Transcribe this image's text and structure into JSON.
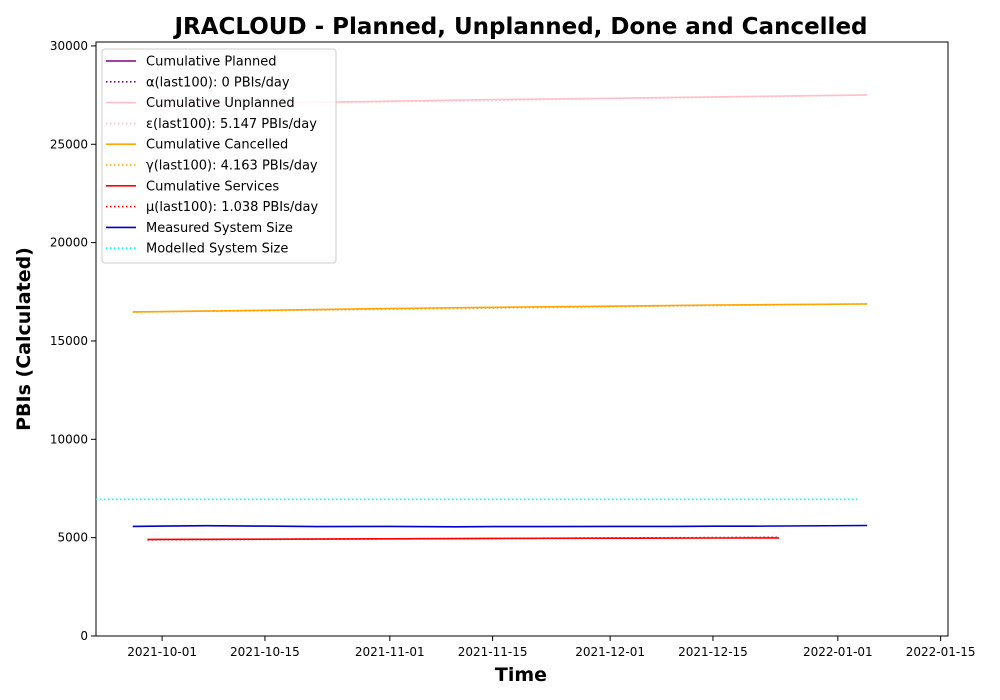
{
  "chart_data": {
    "type": "line",
    "title": "JRACLOUD - Planned, Unplanned, Done  and Cancelled",
    "xlabel": "Time",
    "ylabel": "PBIs (Calculated)",
    "x_axis_type": "date",
    "xlim": [
      "2021-09-22",
      "2022-01-16"
    ],
    "ylim": [
      0,
      30200
    ],
    "x_ticks": [
      "2021-10-01",
      "2021-10-15",
      "2021-11-01",
      "2021-11-15",
      "2021-12-01",
      "2021-12-15",
      "2022-01-01",
      "2022-01-15"
    ],
    "y_ticks": [
      0,
      5000,
      10000,
      15000,
      20000,
      25000,
      30000
    ],
    "grid": false,
    "legend_position": "top-left",
    "series": [
      {
        "name": "Cumulative Planned",
        "color": "#800080",
        "style": "solid",
        "x": [],
        "y": []
      },
      {
        "name": "α(last100): 0 PBIs/day",
        "color": "#800080",
        "style": "dotted",
        "x": [],
        "y": []
      },
      {
        "name": "Cumulative Unplanned",
        "color": "#ffc0cb",
        "style": "solid",
        "x": [
          "2021-09-29",
          "2021-10-15",
          "2021-11-01",
          "2021-11-15",
          "2021-12-01",
          "2021-12-15",
          "2022-01-05"
        ],
        "y": [
          26960,
          27090,
          27190,
          27270,
          27340,
          27410,
          27510
        ]
      },
      {
        "name": "ε(last100): 5.147 PBIs/day",
        "color": "#ffc0cb",
        "style": "dotted",
        "x": [
          "2021-09-29",
          "2022-01-05"
        ],
        "y": [
          26990,
          27500
        ]
      },
      {
        "name": "Cumulative Cancelled",
        "color": "#ffa500",
        "style": "solid",
        "x": [
          "2021-09-27",
          "2021-10-15",
          "2021-11-01",
          "2021-11-15",
          "2021-12-01",
          "2021-12-15",
          "2022-01-05"
        ],
        "y": [
          16480,
          16560,
          16650,
          16710,
          16770,
          16830,
          16880
        ]
      },
      {
        "name": "γ(last100): 4.163 PBIs/day",
        "color": "#ffa500",
        "style": "dotted",
        "x": [
          "2021-09-27",
          "2022-01-05"
        ],
        "y": [
          16470,
          16890
        ]
      },
      {
        "name": "Cumulative Services",
        "color": "#ff0000",
        "style": "solid",
        "x": [
          "2021-09-29",
          "2021-10-15",
          "2021-11-01",
          "2021-11-15",
          "2021-12-01",
          "2021-12-15",
          "2021-12-24"
        ],
        "y": [
          4910,
          4920,
          4940,
          4960,
          4970,
          4980,
          4990
        ]
      },
      {
        "name": "μ(last100): 1.038 PBIs/day",
        "color": "#ff0000",
        "style": "dotted",
        "x": [
          "2021-09-29",
          "2021-12-24"
        ],
        "y": [
          4890,
          5020
        ]
      },
      {
        "name": "Measured System Size",
        "color": "#0000cd",
        "style": "solid",
        "x": [
          "2021-09-27",
          "2021-10-01",
          "2021-10-07",
          "2021-10-15",
          "2021-10-22",
          "2021-11-01",
          "2021-11-10",
          "2021-11-15",
          "2021-11-22",
          "2021-12-01",
          "2021-12-10",
          "2021-12-15",
          "2021-12-20",
          "2022-01-05"
        ],
        "y": [
          5570,
          5590,
          5610,
          5590,
          5560,
          5570,
          5550,
          5560,
          5560,
          5570,
          5570,
          5580,
          5580,
          5620
        ]
      },
      {
        "name": "Modelled System Size",
        "color": "#00ffff",
        "style": "dotted",
        "x": [
          "2021-09-22",
          "2022-01-04"
        ],
        "y": [
          6950,
          6950
        ]
      }
    ]
  }
}
